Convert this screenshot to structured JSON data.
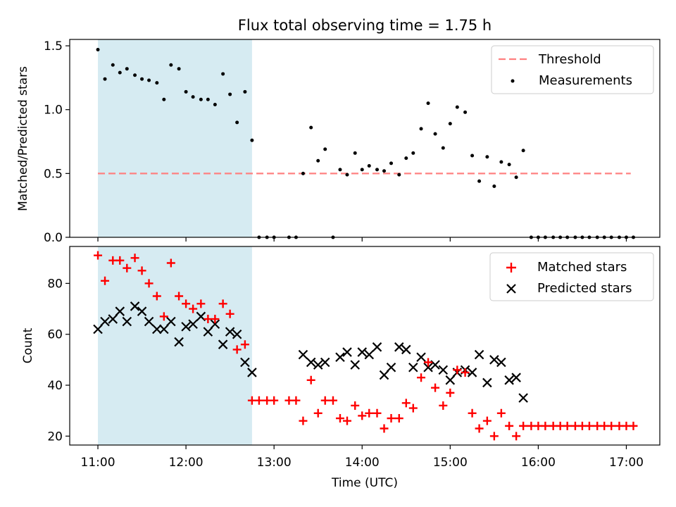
{
  "chart_data": [
    {
      "type": "scatter",
      "title": "Flux total observing time = 1.75 h",
      "xlabel": "",
      "ylabel": "Matched/Predicted stars",
      "xlim": [
        10.68,
        17.38
      ],
      "ylim": [
        0.0,
        1.55
      ],
      "yticks": [
        0.0,
        0.5,
        1.0,
        1.5
      ],
      "ytick_labels": [
        "0.0",
        "0.5",
        "1.0",
        "1.5"
      ],
      "xticks": [
        11,
        12,
        13,
        14,
        15,
        16,
        17
      ],
      "shaded_span": {
        "start": 11.0,
        "end": 12.75,
        "color": "#add8e6"
      },
      "legend": {
        "location": "upper right",
        "threshold_label": "Threshold",
        "measurements_label": "Measurements"
      },
      "threshold": {
        "value": 0.5,
        "x_start": 11.0,
        "x_end": 17.05,
        "color": "#ff8080"
      },
      "measurements": {
        "name": "Measurements",
        "color": "#000000",
        "x": [
          11.0,
          11.08,
          11.17,
          11.25,
          11.33,
          11.42,
          11.5,
          11.58,
          11.67,
          11.75,
          11.83,
          11.92,
          12.0,
          12.08,
          12.17,
          12.25,
          12.33,
          12.42,
          12.5,
          12.58,
          12.67,
          12.75,
          12.83,
          12.92,
          13.0,
          13.17,
          13.25,
          13.33,
          13.42,
          13.5,
          13.58,
          13.67,
          13.75,
          13.83,
          13.92,
          14.0,
          14.08,
          14.17,
          14.25,
          14.33,
          14.42,
          14.5,
          14.58,
          14.67,
          14.75,
          14.83,
          14.92,
          15.0,
          15.08,
          15.17,
          15.25,
          15.33,
          15.42,
          15.5,
          15.58,
          15.67,
          15.75,
          15.83,
          15.92,
          16.0,
          16.08,
          16.17,
          16.25,
          16.33,
          16.42,
          16.5,
          16.58,
          16.67,
          16.75,
          16.83,
          16.92,
          17.0,
          17.08
        ],
        "y": [
          1.47,
          1.24,
          1.35,
          1.29,
          1.32,
          1.27,
          1.24,
          1.23,
          1.21,
          1.08,
          1.35,
          1.32,
          1.14,
          1.1,
          1.08,
          1.08,
          1.04,
          1.28,
          1.12,
          0.9,
          1.14,
          0.76,
          0.0,
          0.0,
          0.0,
          0.0,
          0.0,
          0.5,
          0.86,
          0.6,
          0.69,
          0.0,
          0.53,
          0.49,
          0.66,
          0.53,
          0.56,
          0.53,
          0.52,
          0.58,
          0.49,
          0.62,
          0.66,
          0.85,
          1.05,
          0.81,
          0.7,
          0.89,
          1.02,
          0.98,
          0.64,
          0.44,
          0.63,
          0.4,
          0.59,
          0.57,
          0.47,
          0.68,
          0.0,
          0.0,
          0.0,
          0.0,
          0.0,
          0.0,
          0.0,
          0.0,
          0.0,
          0.0,
          0.0,
          0.0,
          0.0,
          0.0,
          0.0
        ]
      }
    },
    {
      "type": "scatter",
      "title": "",
      "xlabel": "Time (UTC)",
      "ylabel": "Count",
      "xlim": [
        10.68,
        17.38
      ],
      "ylim": [
        16.5,
        94.5
      ],
      "yticks": [
        20,
        40,
        60,
        80
      ],
      "ytick_labels": [
        "20",
        "40",
        "60",
        "80"
      ],
      "xticks": [
        11,
        12,
        13,
        14,
        15,
        16,
        17
      ],
      "xtick_labels": [
        "11:00",
        "12:00",
        "13:00",
        "14:00",
        "15:00",
        "16:00",
        "17:00"
      ],
      "shaded_span": {
        "start": 11.0,
        "end": 12.75,
        "color": "#add8e6"
      },
      "legend": {
        "location": "upper right",
        "matched_label": "Matched stars",
        "predicted_label": "Predicted stars"
      },
      "matched": {
        "name": "Matched stars",
        "color": "#ff0000",
        "x": [
          11.0,
          11.08,
          11.17,
          11.25,
          11.33,
          11.42,
          11.5,
          11.58,
          11.67,
          11.75,
          11.83,
          11.92,
          12.0,
          12.08,
          12.17,
          12.25,
          12.33,
          12.42,
          12.5,
          12.58,
          12.67,
          12.75,
          12.83,
          12.92,
          13.0,
          13.17,
          13.25,
          13.33,
          13.42,
          13.5,
          13.58,
          13.67,
          13.75,
          13.83,
          13.92,
          14.0,
          14.08,
          14.17,
          14.25,
          14.33,
          14.42,
          14.5,
          14.58,
          14.67,
          14.75,
          14.83,
          14.92,
          15.0,
          15.08,
          15.17,
          15.25,
          15.33,
          15.42,
          15.5,
          15.58,
          15.67,
          15.75,
          15.83,
          15.92,
          16.0,
          16.08,
          16.17,
          16.25,
          16.33,
          16.42,
          16.5,
          16.58,
          16.67,
          16.75,
          16.83,
          16.92,
          17.0,
          17.08
        ],
        "y": [
          91,
          81,
          89,
          89,
          86,
          90,
          85,
          80,
          75,
          67,
          88,
          75,
          72,
          70,
          72,
          66,
          66,
          72,
          68,
          54,
          56,
          34,
          34,
          34,
          34,
          34,
          34,
          26,
          42,
          29,
          34,
          34,
          27,
          26,
          32,
          28,
          29,
          29,
          23,
          27,
          27,
          33,
          31,
          43,
          49,
          39,
          32,
          37,
          46,
          45,
          29,
          23,
          26,
          20,
          29,
          24,
          20,
          24,
          24,
          24,
          24,
          24,
          24,
          24,
          24,
          24,
          24,
          24,
          24,
          24,
          24,
          24,
          24
        ]
      },
      "predicted": {
        "name": "Predicted stars",
        "color": "#000000",
        "x": [
          11.0,
          11.08,
          11.17,
          11.25,
          11.33,
          11.42,
          11.5,
          11.58,
          11.67,
          11.75,
          11.83,
          11.92,
          12.0,
          12.08,
          12.17,
          12.25,
          12.33,
          12.42,
          12.5,
          12.58,
          12.67,
          12.75,
          13.33,
          13.42,
          13.5,
          13.58,
          13.75,
          13.83,
          13.92,
          14.0,
          14.08,
          14.17,
          14.25,
          14.33,
          14.42,
          14.5,
          14.58,
          14.67,
          14.75,
          14.83,
          14.92,
          15.0,
          15.08,
          15.17,
          15.25,
          15.33,
          15.42,
          15.5,
          15.58,
          15.67,
          15.75,
          15.83
        ],
        "y": [
          62,
          65,
          66,
          69,
          65,
          71,
          69,
          65,
          62,
          62,
          65,
          57,
          63,
          64,
          67,
          61,
          64,
          56,
          61,
          60,
          49,
          45,
          52,
          49,
          48,
          49,
          51,
          53,
          48,
          53,
          52,
          55,
          44,
          47,
          55,
          54,
          47,
          51,
          47,
          48,
          46,
          42,
          45,
          46,
          45,
          52,
          41,
          50,
          49,
          42,
          43,
          35
        ]
      }
    }
  ]
}
